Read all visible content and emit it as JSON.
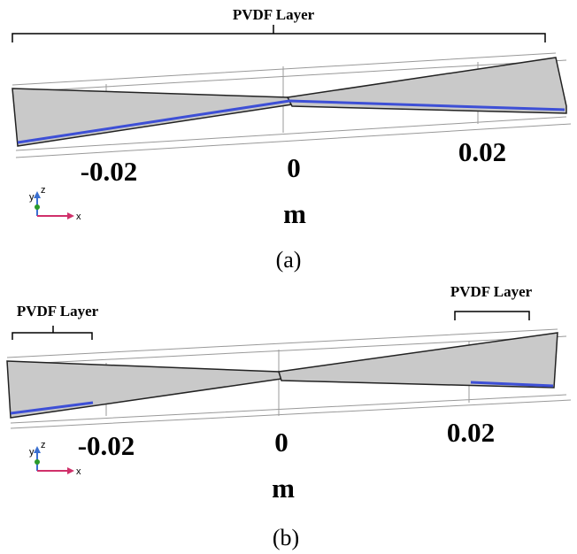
{
  "panels": [
    {
      "caption": "(a)",
      "layer_labels": [
        "PVDF Layer"
      ],
      "ticks": [
        "-0.02",
        "0",
        "0.02"
      ],
      "unit": "m",
      "axes": {
        "z": "z",
        "y": "y",
        "x": "x"
      }
    },
    {
      "caption": "(b)",
      "layer_labels": [
        "PVDF Layer",
        "PVDF Layer"
      ],
      "ticks": [
        "-0.02",
        "0",
        "0.02"
      ],
      "unit": "m",
      "axes": {
        "z": "z",
        "y": "y",
        "x": "x"
      }
    }
  ]
}
